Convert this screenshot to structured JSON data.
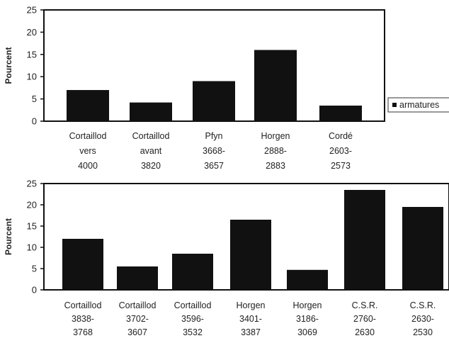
{
  "chart_data": [
    {
      "type": "bar",
      "ylabel": "Pourcent",
      "ylim": [
        0,
        25
      ],
      "yticks": [
        0,
        5,
        10,
        15,
        20,
        25
      ],
      "grid": false,
      "legend": {
        "placement": "right",
        "entries": [
          "armatures"
        ]
      },
      "categories": [
        [
          "Cortaillod",
          "vers",
          "4000"
        ],
        [
          "Cortaillod",
          "avant",
          "3820"
        ],
        [
          "Pfyn",
          "3668-",
          "3657"
        ],
        [
          "Horgen",
          "2888-",
          "2883"
        ],
        [
          "Cordé",
          "2603-",
          "2573"
        ]
      ],
      "series": [
        {
          "name": "armatures",
          "values": [
            7,
            4.2,
            9,
            16,
            3.5
          ]
        }
      ],
      "colors": {
        "bar": "#111111",
        "axis": "#111111"
      }
    },
    {
      "type": "bar",
      "ylabel": "Pourcent",
      "ylim": [
        0,
        25
      ],
      "yticks": [
        0,
        5,
        10,
        15,
        20,
        25
      ],
      "grid": false,
      "categories": [
        [
          "Cortaillod",
          "3838-",
          "3768"
        ],
        [
          "Cortaillod",
          "3702-",
          "3607"
        ],
        [
          "Cortaillod",
          "3596-",
          "3532"
        ],
        [
          "Horgen",
          "3401-",
          "3387"
        ],
        [
          "Horgen",
          "3186-",
          "3069"
        ],
        [
          "C.S.R.",
          "2760-",
          "2630"
        ],
        [
          "C.S.R.",
          "2630-",
          "2530"
        ]
      ],
      "series": [
        {
          "values": [
            12,
            5.5,
            8.5,
            16.5,
            4.7,
            23.5,
            19.5
          ]
        }
      ],
      "colors": {
        "bar": "#111111",
        "axis": "#111111"
      }
    }
  ]
}
